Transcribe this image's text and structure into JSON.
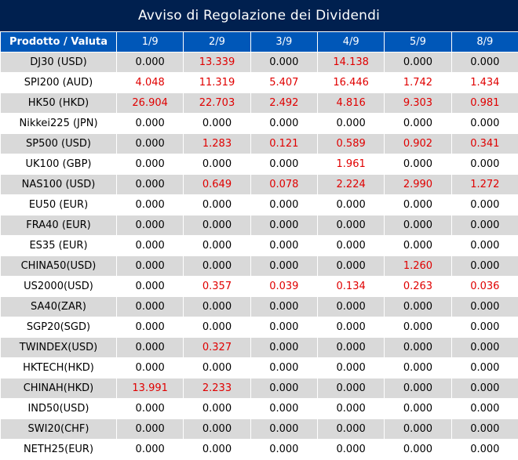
{
  "title": "Avviso di Regolazione dei Dividendi",
  "columns": [
    "Prodotto / Valuta",
    "1/9",
    "2/9",
    "3/9",
    "4/9",
    "5/9",
    "8/9"
  ],
  "rows": [
    {
      "product": "DJ30 (USD)",
      "values": [
        "0.000",
        "13.339",
        "0.000",
        "14.138",
        "0.000",
        "0.000"
      ]
    },
    {
      "product": "SPI200 (AUD)",
      "values": [
        "4.048",
        "11.319",
        "5.407",
        "16.446",
        "1.742",
        "1.434"
      ]
    },
    {
      "product": "HK50 (HKD)",
      "values": [
        "26.904",
        "22.703",
        "2.492",
        "4.816",
        "9.303",
        "0.981"
      ]
    },
    {
      "product": "Nikkei225 (JPN)",
      "values": [
        "0.000",
        "0.000",
        "0.000",
        "0.000",
        "0.000",
        "0.000"
      ]
    },
    {
      "product": "SP500 (USD)",
      "values": [
        "0.000",
        "1.283",
        "0.121",
        "0.589",
        "0.902",
        "0.341"
      ]
    },
    {
      "product": "UK100 (GBP)",
      "values": [
        "0.000",
        "0.000",
        "0.000",
        "1.961",
        "0.000",
        "0.000"
      ]
    },
    {
      "product": "NAS100 (USD)",
      "values": [
        "0.000",
        "0.649",
        "0.078",
        "2.224",
        "2.990",
        "1.272"
      ]
    },
    {
      "product": "EU50 (EUR)",
      "values": [
        "0.000",
        "0.000",
        "0.000",
        "0.000",
        "0.000",
        "0.000"
      ]
    },
    {
      "product": "FRA40 (EUR)",
      "values": [
        "0.000",
        "0.000",
        "0.000",
        "0.000",
        "0.000",
        "0.000"
      ]
    },
    {
      "product": "ES35 (EUR)",
      "values": [
        "0.000",
        "0.000",
        "0.000",
        "0.000",
        "0.000",
        "0.000"
      ]
    },
    {
      "product": "CHINA50(USD)",
      "values": [
        "0.000",
        "0.000",
        "0.000",
        "0.000",
        "1.260",
        "0.000"
      ]
    },
    {
      "product": "US2000(USD)",
      "values": [
        "0.000",
        "0.357",
        "0.039",
        "0.134",
        "0.263",
        "0.036"
      ]
    },
    {
      "product": "SA40(ZAR)",
      "values": [
        "0.000",
        "0.000",
        "0.000",
        "0.000",
        "0.000",
        "0.000"
      ]
    },
    {
      "product": "SGP20(SGD)",
      "values": [
        "0.000",
        "0.000",
        "0.000",
        "0.000",
        "0.000",
        "0.000"
      ]
    },
    {
      "product": "TWINDEX(USD)",
      "values": [
        "0.000",
        "0.327",
        "0.000",
        "0.000",
        "0.000",
        "0.000"
      ]
    },
    {
      "product": "HKTECH(HKD)",
      "values": [
        "0.000",
        "0.000",
        "0.000",
        "0.000",
        "0.000",
        "0.000"
      ]
    },
    {
      "product": "CHINAH(HKD)",
      "values": [
        "13.991",
        "2.233",
        "0.000",
        "0.000",
        "0.000",
        "0.000"
      ]
    },
    {
      "product": "IND50(USD)",
      "values": [
        "0.000",
        "0.000",
        "0.000",
        "0.000",
        "0.000",
        "0.000"
      ]
    },
    {
      "product": "SWI20(CHF)",
      "values": [
        "0.000",
        "0.000",
        "0.000",
        "0.000",
        "0.000",
        "0.000"
      ]
    },
    {
      "product": "NETH25(EUR)",
      "values": [
        "0.000",
        "0.000",
        "0.000",
        "0.000",
        "0.000",
        "0.000"
      ]
    }
  ],
  "colors": {
    "title_bg": "#00204f",
    "header_bg": "#0057b8",
    "row_alt_bg": "#d9d9d9",
    "nonzero_text": "#e00000"
  }
}
